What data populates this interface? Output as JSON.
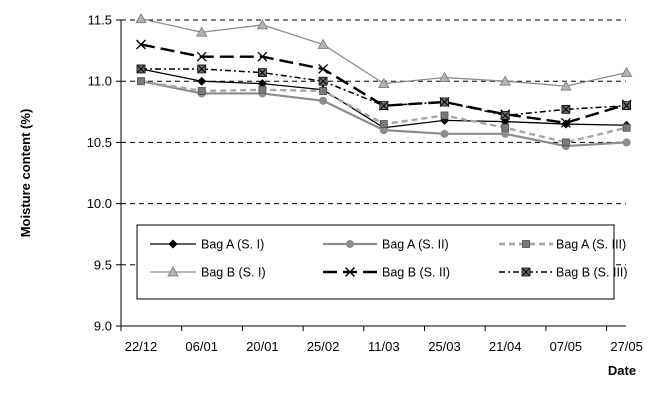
{
  "chart_data": {
    "type": "line",
    "title": "",
    "xlabel": "Date",
    "ylabel": "Moisture content (%)",
    "categories": [
      "22/12",
      "06/01",
      "20/01",
      "25/02",
      "11/03",
      "25/03",
      "21/04",
      "07/05",
      "27/05"
    ],
    "ylim": [
      9.0,
      11.5
    ],
    "yticks": [
      "9.0",
      "9.5",
      "10.0",
      "10.5",
      "11.0",
      "11.5"
    ],
    "grid": "horizontal dashed",
    "legend_placement": "inside-bottom",
    "series": [
      {
        "name": "Bag A (S. I)",
        "values": [
          11.1,
          11.0,
          10.98,
          10.93,
          10.62,
          10.68,
          10.67,
          10.65,
          10.64
        ],
        "color": "#000000",
        "dash": "",
        "marker": "diamond",
        "stroke_width": 1.3
      },
      {
        "name": "Bag A (S. II)",
        "values": [
          11.0,
          10.9,
          10.9,
          10.84,
          10.6,
          10.57,
          10.57,
          10.47,
          10.5
        ],
        "color": "#8c8c8c",
        "dash": "",
        "marker": "circle",
        "stroke_width": 2.2
      },
      {
        "name": "Bag A (S. III)",
        "values": [
          11.0,
          10.92,
          10.93,
          10.92,
          10.65,
          10.72,
          10.62,
          10.5,
          10.62
        ],
        "color": "#a6a6a6",
        "dash": "6,4",
        "marker": "square",
        "stroke_width": 2.4
      },
      {
        "name": "Bag B (S. I)",
        "values": [
          11.51,
          11.4,
          11.46,
          11.3,
          10.98,
          11.03,
          11.0,
          10.96,
          11.07
        ],
        "color": "#8c8c8c",
        "dash": "",
        "marker": "triangle",
        "stroke_width": 1.3
      },
      {
        "name": "Bag B (S. II)",
        "values": [
          11.3,
          11.2,
          11.2,
          11.1,
          10.8,
          10.83,
          10.73,
          10.66,
          10.81
        ],
        "color": "#000000",
        "dash": "14,6",
        "marker": "x",
        "stroke_width": 2.4
      },
      {
        "name": "Bag B (S. III)",
        "values": [
          11.1,
          11.1,
          11.07,
          11.0,
          10.8,
          10.83,
          10.72,
          10.77,
          10.8
        ],
        "color": "#000000",
        "dash": "6,3,2,3",
        "marker": "squarex",
        "stroke_width": 1.5
      }
    ]
  }
}
